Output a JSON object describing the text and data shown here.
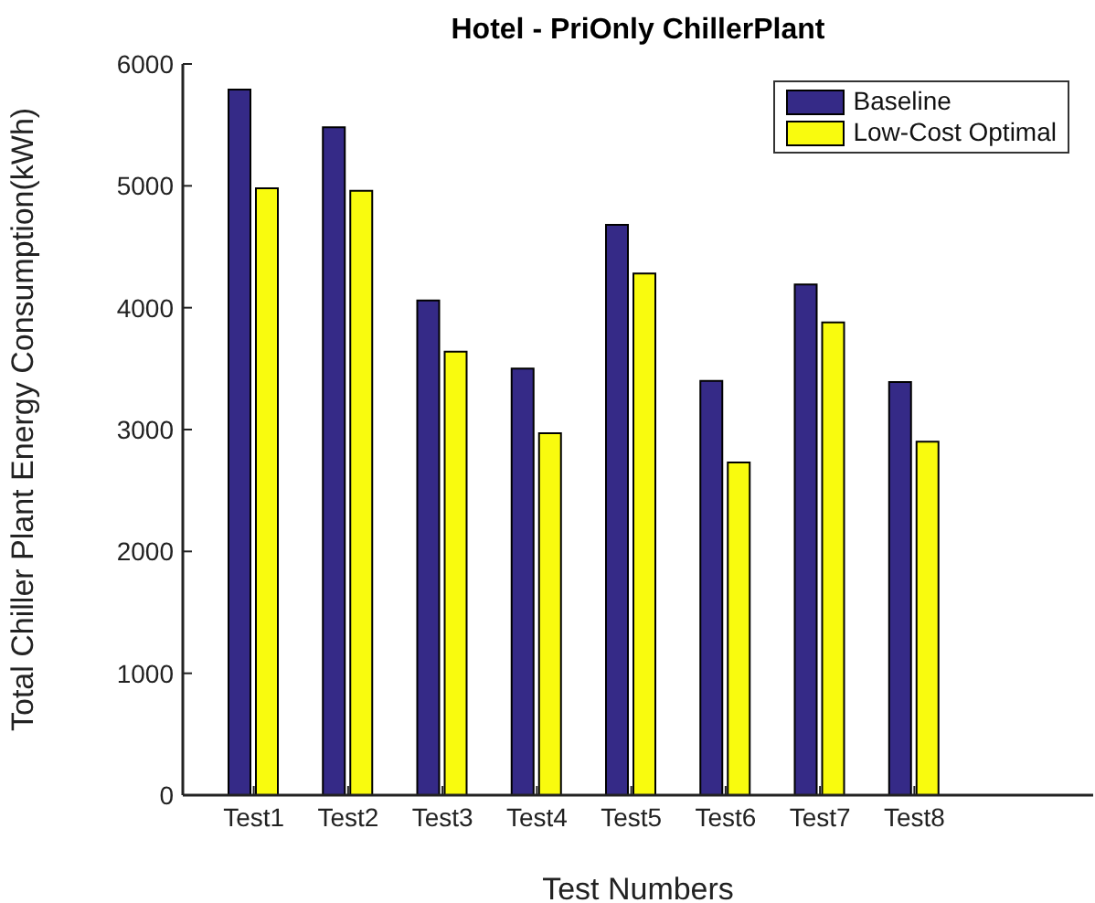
{
  "chart_data": {
    "type": "bar",
    "title": "Hotel - PriOnly ChillerPlant",
    "xlabel": "Test Numbers",
    "ylabel": "Total Chiller Plant Energy Consumption(kWh)",
    "categories": [
      "Test1",
      "Test2",
      "Test3",
      "Test4",
      "Test5",
      "Test6",
      "Test7",
      "Test8"
    ],
    "series": [
      {
        "name": "Baseline",
        "color": "#352a87",
        "values": [
          5790,
          5480,
          4060,
          3500,
          4680,
          3400,
          4190,
          3390
        ]
      },
      {
        "name": "Low-Cost Optimal",
        "color": "#f9fb0e",
        "values": [
          4980,
          4960,
          3640,
          2970,
          4280,
          2730,
          3880,
          2900
        ]
      }
    ],
    "ylim": [
      0,
      6000
    ],
    "yticks": [
      0,
      1000,
      2000,
      3000,
      4000,
      5000,
      6000
    ],
    "legend": "top right"
  }
}
